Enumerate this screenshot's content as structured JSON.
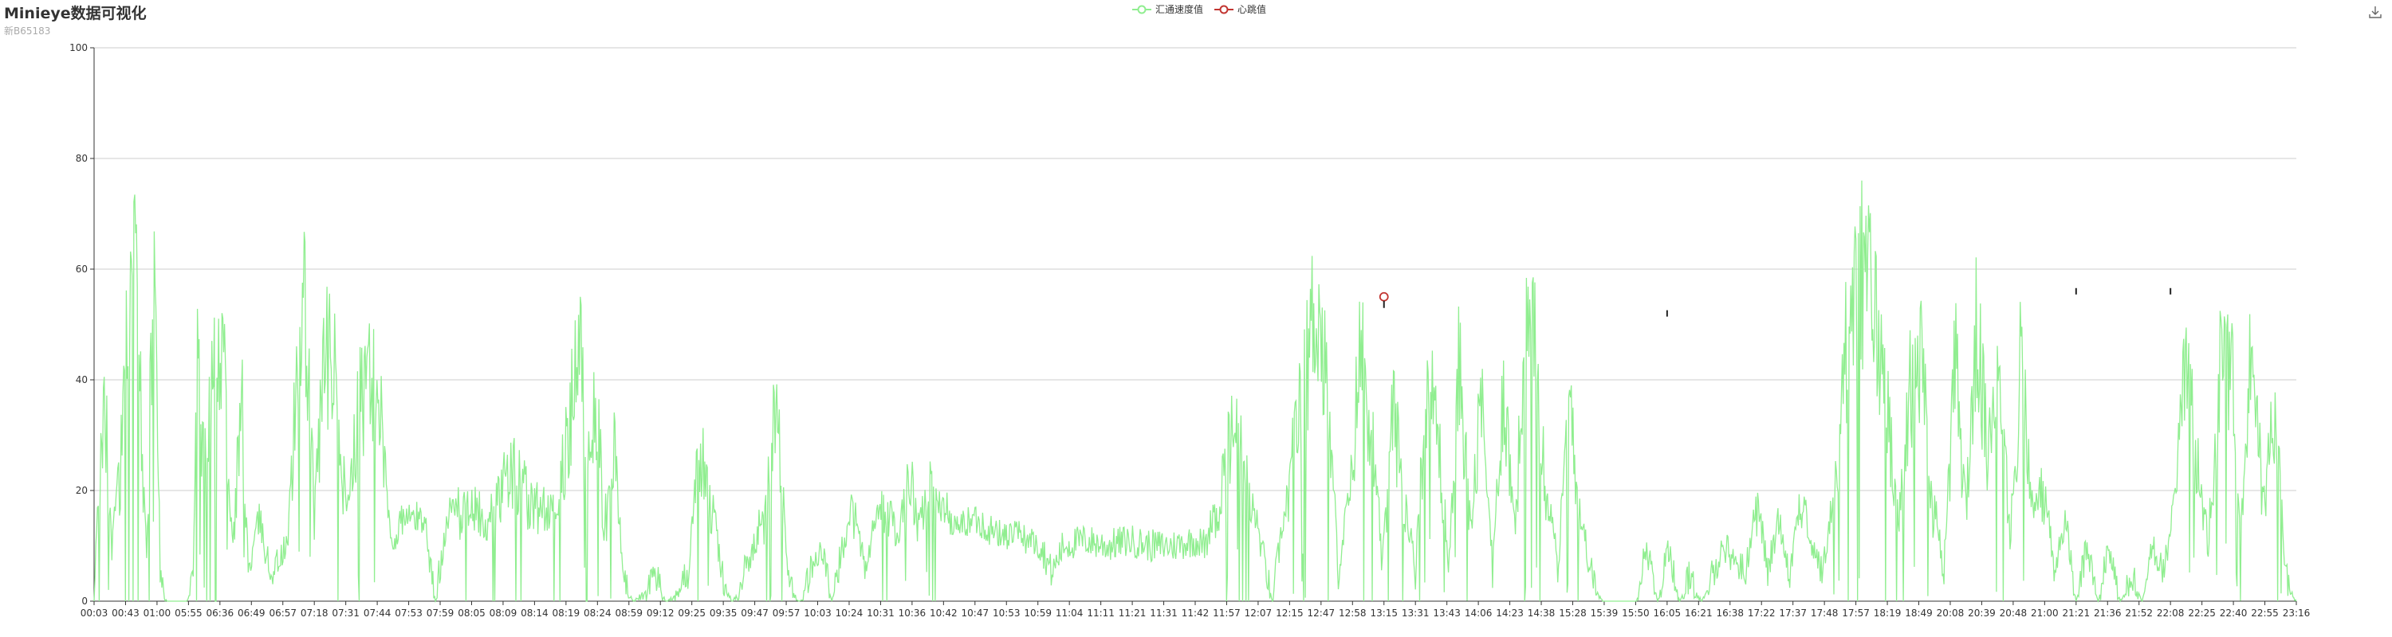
{
  "header": {
    "title": "Minieye数据可视化",
    "subtitle": "新B65183"
  },
  "toolbar": {
    "save_icon": "download-icon"
  },
  "colors": {
    "speed": "#90ee90",
    "heartbeat": "#c23531",
    "grid": "#cccccc",
    "axis": "#333333"
  },
  "chart_data": {
    "type": "line",
    "title": "Minieye数据可视化",
    "subtitle": "新B65183",
    "legend": {
      "placement": "top-center",
      "entries": [
        "汇通速度值",
        "心跳值"
      ]
    },
    "y_axis": {
      "min": 0,
      "max": 100,
      "ticks": [
        0,
        20,
        40,
        60,
        80,
        100
      ]
    },
    "grid": true,
    "x_tick_labels": [
      "00:03",
      "00:43",
      "01:00",
      "05:55",
      "06:36",
      "06:49",
      "06:57",
      "07:18",
      "07:31",
      "07:44",
      "07:53",
      "07:59",
      "08:05",
      "08:09",
      "08:14",
      "08:19",
      "08:24",
      "08:59",
      "09:12",
      "09:25",
      "09:35",
      "09:47",
      "09:57",
      "10:03",
      "10:24",
      "10:31",
      "10:36",
      "10:42",
      "10:47",
      "10:53",
      "10:59",
      "11:04",
      "11:11",
      "11:21",
      "11:31",
      "11:42",
      "11:57",
      "12:07",
      "12:15",
      "12:47",
      "12:58",
      "13:15",
      "13:31",
      "13:43",
      "14:06",
      "14:23",
      "14:38",
      "15:28",
      "15:39",
      "15:50",
      "16:05",
      "16:21",
      "16:38",
      "17:22",
      "17:37",
      "17:48",
      "17:57",
      "18:19",
      "18:49",
      "20:08",
      "20:39",
      "20:48",
      "21:00",
      "21:21",
      "21:36",
      "21:52",
      "22:08",
      "22:25",
      "22:40",
      "22:55",
      "23:16"
    ],
    "series": [
      {
        "name": "汇通速度值",
        "color": "#90ee90",
        "envelope": [
          {
            "p": 0.0,
            "v": 0
          },
          {
            "p": 0.002,
            "v": 20
          },
          {
            "p": 0.005,
            "v": 45
          },
          {
            "p": 0.008,
            "v": 10
          },
          {
            "p": 0.012,
            "v": 30
          },
          {
            "p": 0.015,
            "v": 60
          },
          {
            "p": 0.017,
            "v": 82
          },
          {
            "p": 0.02,
            "v": 70
          },
          {
            "p": 0.022,
            "v": 30
          },
          {
            "p": 0.024,
            "v": 5
          },
          {
            "p": 0.026,
            "v": 60
          },
          {
            "p": 0.028,
            "v": 68
          },
          {
            "p": 0.03,
            "v": 5
          },
          {
            "p": 0.033,
            "v": 0
          },
          {
            "p": 0.042,
            "v": 0
          },
          {
            "p": 0.045,
            "v": 5
          },
          {
            "p": 0.047,
            "v": 55
          },
          {
            "p": 0.05,
            "v": 30
          },
          {
            "p": 0.053,
            "v": 50
          },
          {
            "p": 0.057,
            "v": 58
          },
          {
            "p": 0.06,
            "v": 45
          },
          {
            "p": 0.063,
            "v": 10
          },
          {
            "p": 0.067,
            "v": 50
          },
          {
            "p": 0.07,
            "v": 5
          },
          {
            "p": 0.075,
            "v": 15
          },
          {
            "p": 0.08,
            "v": 5
          },
          {
            "p": 0.088,
            "v": 10
          },
          {
            "p": 0.092,
            "v": 55
          },
          {
            "p": 0.096,
            "v": 66
          },
          {
            "p": 0.1,
            "v": 20
          },
          {
            "p": 0.105,
            "v": 55
          },
          {
            "p": 0.11,
            "v": 50
          },
          {
            "p": 0.115,
            "v": 15
          },
          {
            "p": 0.12,
            "v": 45
          },
          {
            "p": 0.125,
            "v": 50
          },
          {
            "p": 0.13,
            "v": 45
          },
          {
            "p": 0.135,
            "v": 10
          },
          {
            "p": 0.14,
            "v": 15
          },
          {
            "p": 0.15,
            "v": 15
          },
          {
            "p": 0.155,
            "v": 0
          },
          {
            "p": 0.16,
            "v": 15
          },
          {
            "p": 0.17,
            "v": 20
          },
          {
            "p": 0.18,
            "v": 20
          },
          {
            "p": 0.19,
            "v": 30
          },
          {
            "p": 0.2,
            "v": 20
          },
          {
            "p": 0.21,
            "v": 25
          },
          {
            "p": 0.215,
            "v": 35
          },
          {
            "p": 0.22,
            "v": 62
          },
          {
            "p": 0.225,
            "v": 30
          },
          {
            "p": 0.228,
            "v": 45
          },
          {
            "p": 0.232,
            "v": 15
          },
          {
            "p": 0.236,
            "v": 35
          },
          {
            "p": 0.24,
            "v": 5
          },
          {
            "p": 0.245,
            "v": 0
          },
          {
            "p": 0.255,
            "v": 5
          },
          {
            "p": 0.26,
            "v": 0
          },
          {
            "p": 0.27,
            "v": 5
          },
          {
            "p": 0.275,
            "v": 35
          },
          {
            "p": 0.28,
            "v": 20
          },
          {
            "p": 0.285,
            "v": 5
          },
          {
            "p": 0.29,
            "v": 0
          },
          {
            "p": 0.3,
            "v": 10
          },
          {
            "p": 0.305,
            "v": 20
          },
          {
            "p": 0.31,
            "v": 45
          },
          {
            "p": 0.315,
            "v": 5
          },
          {
            "p": 0.32,
            "v": 0
          },
          {
            "p": 0.33,
            "v": 10
          },
          {
            "p": 0.335,
            "v": 0
          },
          {
            "p": 0.34,
            "v": 10
          },
          {
            "p": 0.345,
            "v": 20
          },
          {
            "p": 0.35,
            "v": 5
          },
          {
            "p": 0.355,
            "v": 15
          },
          {
            "p": 0.36,
            "v": 20
          },
          {
            "p": 0.365,
            "v": 10
          },
          {
            "p": 0.37,
            "v": 28
          },
          {
            "p": 0.375,
            "v": 15
          },
          {
            "p": 0.38,
            "v": 25
          },
          {
            "p": 0.385,
            "v": 20
          },
          {
            "p": 0.39,
            "v": 13
          },
          {
            "p": 0.4,
            "v": 15
          },
          {
            "p": 0.41,
            "v": 12
          },
          {
            "p": 0.42,
            "v": 12
          },
          {
            "p": 0.43,
            "v": 10
          },
          {
            "p": 0.435,
            "v": 5
          },
          {
            "p": 0.44,
            "v": 10
          },
          {
            "p": 0.45,
            "v": 11
          },
          {
            "p": 0.46,
            "v": 10
          },
          {
            "p": 0.47,
            "v": 11
          },
          {
            "p": 0.48,
            "v": 10
          },
          {
            "p": 0.49,
            "v": 10
          },
          {
            "p": 0.5,
            "v": 11
          },
          {
            "p": 0.505,
            "v": 10
          },
          {
            "p": 0.51,
            "v": 20
          },
          {
            "p": 0.515,
            "v": 35
          },
          {
            "p": 0.52,
            "v": 40
          },
          {
            "p": 0.525,
            "v": 20
          },
          {
            "p": 0.53,
            "v": 10
          },
          {
            "p": 0.535,
            "v": 0
          },
          {
            "p": 0.54,
            "v": 15
          },
          {
            "p": 0.545,
            "v": 35
          },
          {
            "p": 0.55,
            "v": 50
          },
          {
            "p": 0.555,
            "v": 70
          },
          {
            "p": 0.56,
            "v": 45
          },
          {
            "p": 0.565,
            "v": 5
          },
          {
            "p": 0.57,
            "v": 20
          },
          {
            "p": 0.575,
            "v": 58
          },
          {
            "p": 0.58,
            "v": 40
          },
          {
            "p": 0.585,
            "v": 5
          },
          {
            "p": 0.59,
            "v": 45
          },
          {
            "p": 0.595,
            "v": 20
          },
          {
            "p": 0.6,
            "v": 5
          },
          {
            "p": 0.605,
            "v": 50
          },
          {
            "p": 0.61,
            "v": 40
          },
          {
            "p": 0.615,
            "v": 5
          },
          {
            "p": 0.62,
            "v": 55
          },
          {
            "p": 0.625,
            "v": 15
          },
          {
            "p": 0.63,
            "v": 45
          },
          {
            "p": 0.635,
            "v": 5
          },
          {
            "p": 0.64,
            "v": 50
          },
          {
            "p": 0.645,
            "v": 15
          },
          {
            "p": 0.65,
            "v": 60
          },
          {
            "p": 0.655,
            "v": 55
          },
          {
            "p": 0.66,
            "v": 20
          },
          {
            "p": 0.665,
            "v": 5
          },
          {
            "p": 0.67,
            "v": 50
          },
          {
            "p": 0.675,
            "v": 15
          },
          {
            "p": 0.68,
            "v": 5
          },
          {
            "p": 0.685,
            "v": 0
          },
          {
            "p": 0.7,
            "v": 0
          },
          {
            "p": 0.705,
            "v": 10
          },
          {
            "p": 0.71,
            "v": 0
          },
          {
            "p": 0.715,
            "v": 10
          },
          {
            "p": 0.72,
            "v": 0
          },
          {
            "p": 0.725,
            "v": 5
          },
          {
            "p": 0.73,
            "v": 0
          },
          {
            "p": 0.74,
            "v": 10
          },
          {
            "p": 0.75,
            "v": 5
          },
          {
            "p": 0.755,
            "v": 20
          },
          {
            "p": 0.76,
            "v": 5
          },
          {
            "p": 0.765,
            "v": 15
          },
          {
            "p": 0.77,
            "v": 5
          },
          {
            "p": 0.775,
            "v": 20
          },
          {
            "p": 0.78,
            "v": 10
          },
          {
            "p": 0.785,
            "v": 5
          },
          {
            "p": 0.79,
            "v": 20
          },
          {
            "p": 0.795,
            "v": 55
          },
          {
            "p": 0.8,
            "v": 70
          },
          {
            "p": 0.805,
            "v": 75
          },
          {
            "p": 0.81,
            "v": 60
          },
          {
            "p": 0.815,
            "v": 40
          },
          {
            "p": 0.82,
            "v": 20
          },
          {
            "p": 0.825,
            "v": 50
          },
          {
            "p": 0.83,
            "v": 55
          },
          {
            "p": 0.835,
            "v": 20
          },
          {
            "p": 0.84,
            "v": 5
          },
          {
            "p": 0.845,
            "v": 55
          },
          {
            "p": 0.85,
            "v": 20
          },
          {
            "p": 0.855,
            "v": 63
          },
          {
            "p": 0.86,
            "v": 30
          },
          {
            "p": 0.865,
            "v": 60
          },
          {
            "p": 0.87,
            "v": 10
          },
          {
            "p": 0.875,
            "v": 55
          },
          {
            "p": 0.88,
            "v": 20
          },
          {
            "p": 0.885,
            "v": 25
          },
          {
            "p": 0.89,
            "v": 5
          },
          {
            "p": 0.895,
            "v": 15
          },
          {
            "p": 0.9,
            "v": 0
          },
          {
            "p": 0.905,
            "v": 10
          },
          {
            "p": 0.91,
            "v": 0
          },
          {
            "p": 0.915,
            "v": 10
          },
          {
            "p": 0.92,
            "v": 0
          },
          {
            "p": 0.925,
            "v": 5
          },
          {
            "p": 0.93,
            "v": 0
          },
          {
            "p": 0.935,
            "v": 10
          },
          {
            "p": 0.94,
            "v": 5
          },
          {
            "p": 0.945,
            "v": 20
          },
          {
            "p": 0.95,
            "v": 55
          },
          {
            "p": 0.955,
            "v": 30
          },
          {
            "p": 0.96,
            "v": 10
          },
          {
            "p": 0.965,
            "v": 50
          },
          {
            "p": 0.97,
            "v": 55
          },
          {
            "p": 0.975,
            "v": 15
          },
          {
            "p": 0.98,
            "v": 62
          },
          {
            "p": 0.985,
            "v": 20
          },
          {
            "p": 0.99,
            "v": 45
          },
          {
            "p": 0.995,
            "v": 5
          },
          {
            "p": 1.0,
            "v": 0
          }
        ]
      },
      {
        "name": "心跳值",
        "color": "#c23531",
        "points": [
          {
            "label": "13:15",
            "v": 55
          },
          {
            "label": "16:05",
            "v": 52
          },
          {
            "label": "21:21",
            "v": 56
          },
          {
            "label": "22:08",
            "v": 56
          }
        ]
      }
    ]
  }
}
